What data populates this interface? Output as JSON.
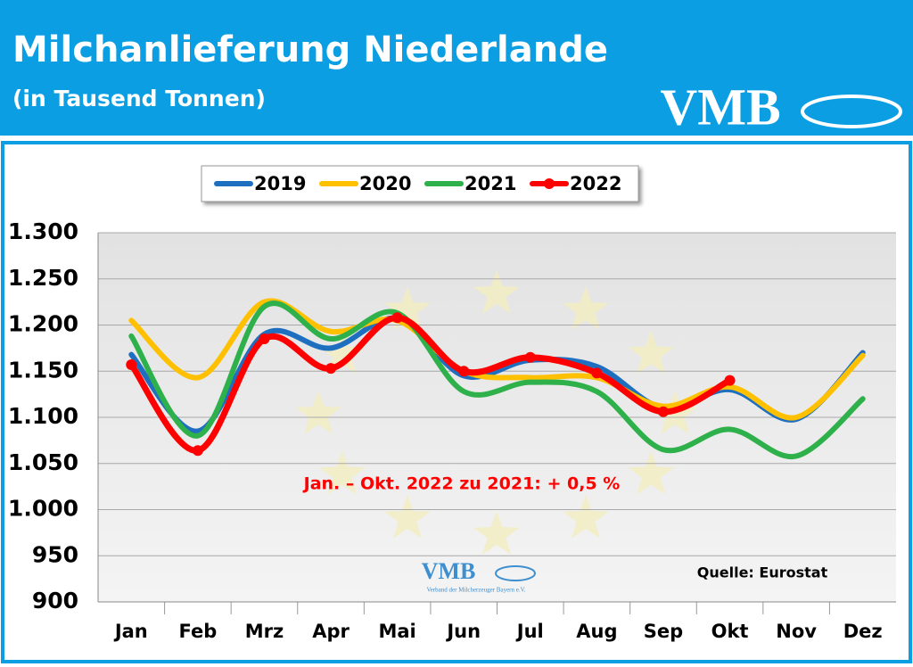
{
  "header": {
    "title": "Milchanlieferung Niederlande",
    "subtitle": "(in Tausend Tonnen)",
    "logo": "VMB"
  },
  "chart_data": {
    "type": "line",
    "categories": [
      "Jan",
      "Feb",
      "Mrz",
      "Apr",
      "Mai",
      "Jun",
      "Jul",
      "Aug",
      "Sep",
      "Okt",
      "Nov",
      "Dez"
    ],
    "series": [
      {
        "name": "2019",
        "color": "#1f6fc0",
        "values": [
          1168,
          1085,
          1190,
          1175,
          1207,
          1145,
          1162,
          1155,
          1110,
          1130,
          1098,
          1170
        ]
      },
      {
        "name": "2020",
        "color": "#ffc000",
        "values": [
          1205,
          1143,
          1225,
          1193,
          1205,
          1150,
          1143,
          1143,
          1112,
          1133,
          1100,
          1167
        ]
      },
      {
        "name": "2021",
        "color": "#2eb04a",
        "values": [
          1188,
          1080,
          1220,
          1185,
          1213,
          1128,
          1138,
          1128,
          1065,
          1087,
          1058,
          1120
        ]
      },
      {
        "name": "2022",
        "color": "#ff0000",
        "values": [
          1157,
          1064,
          1185,
          1153,
          1208,
          1150,
          1165,
          1148,
          1106,
          1140,
          null,
          null
        ]
      }
    ],
    "ylim": [
      900,
      1300
    ],
    "yticks": [
      900,
      950,
      {
        "value": 1000,
        "label": "1.000"
      },
      {
        "value": 1050,
        "label": "1.050"
      },
      {
        "value": 1100,
        "label": "1.100"
      },
      {
        "value": 1150,
        "label": "1.150"
      },
      {
        "value": 1200,
        "label": "1.200"
      },
      {
        "value": 1250,
        "label": "1.250"
      },
      {
        "value": 1300,
        "label": "1.300"
      }
    ],
    "grid": true,
    "legend": "top",
    "annotation": "Jan. – Okt. 2022 zu 2021: + 0,5 %",
    "source": "Quelle: Eurostat",
    "watermark": {
      "logo": "VMB",
      "caption": "Verband der Milcherzeuger Bayern e.V."
    }
  }
}
